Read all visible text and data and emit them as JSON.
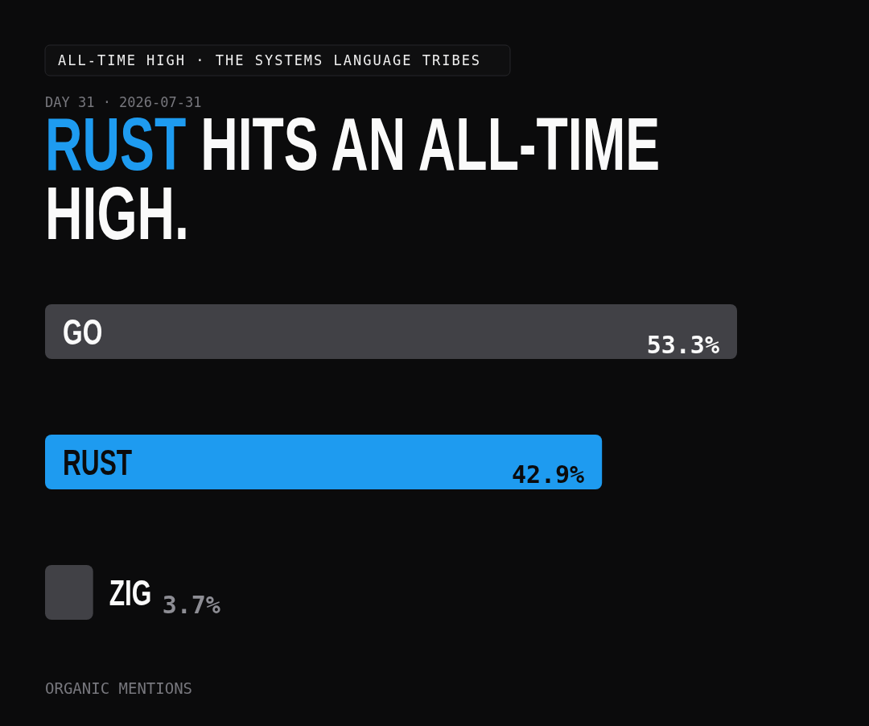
{
  "chart_data": {
    "type": "bar",
    "orientation": "horizontal",
    "title": "RUST HITS AN ALL-TIME HIGH.",
    "subtitle": "ALL-TIME HIGH · THE SYSTEMS LANGUAGE TRIBES",
    "annotations": [
      "DAY 31 · 2026-07-31",
      "ORGANIC MENTIONS"
    ],
    "categories": [
      "GO",
      "RUST",
      "ZIG"
    ],
    "values": [
      53.3,
      42.9,
      3.7
    ],
    "colors": [
      "#414146",
      "#1e9bf0",
      "#414146"
    ],
    "value_labels": [
      "53.3%",
      "42.9%",
      "3.7%"
    ]
  }
}
